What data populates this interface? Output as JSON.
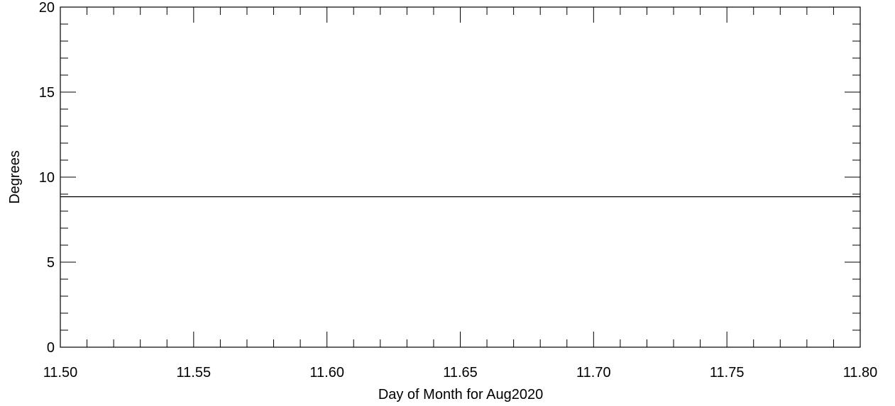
{
  "chart_data": {
    "type": "line",
    "title": "",
    "xlabel": "Day of Month for Aug2020",
    "ylabel": "Degrees",
    "xlim": [
      11.5,
      11.8
    ],
    "ylim": [
      0,
      20
    ],
    "x_ticks": [
      11.5,
      11.55,
      11.6,
      11.65,
      11.7,
      11.75,
      11.8
    ],
    "x_tick_labels": [
      "11.50",
      "11.55",
      "11.60",
      "11.65",
      "11.70",
      "11.75",
      "11.80"
    ],
    "y_ticks": [
      0,
      5,
      10,
      15,
      20
    ],
    "y_tick_labels": [
      "0",
      "5",
      "10",
      "15",
      "20"
    ],
    "x_minor_step": 0.01,
    "y_minor_step": 1,
    "grid": false,
    "colors": {
      "line": "#000000",
      "axes": "#000000",
      "background": "#ffffff"
    },
    "series": [
      {
        "x": [
          11.5,
          11.8
        ],
        "values": [
          8.85,
          8.85
        ]
      }
    ]
  }
}
